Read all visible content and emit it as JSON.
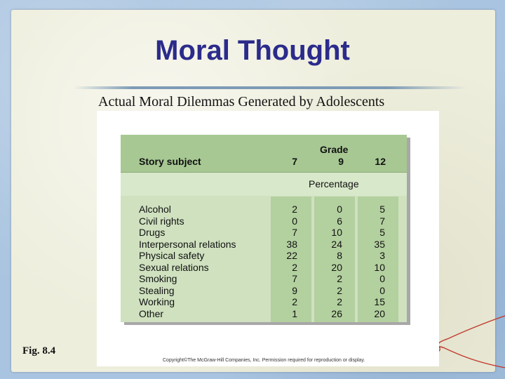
{
  "slide": {
    "title": "Moral Thought",
    "subtitle": "Actual Moral Dilemmas Generated by Adolescents",
    "figure_label": "Fig. 8.4"
  },
  "table": {
    "story_subject_header": "Story subject",
    "grade_header": "Grade",
    "percentage_label": "Percentage",
    "grades": [
      "7",
      "9",
      "12"
    ],
    "rows": [
      {
        "subject": "Alcohol",
        "values": [
          "2",
          "0",
          "5"
        ]
      },
      {
        "subject": "Civil rights",
        "values": [
          "0",
          "6",
          "7"
        ]
      },
      {
        "subject": "Drugs",
        "values": [
          "7",
          "10",
          "5"
        ]
      },
      {
        "subject": "Interpersonal relations",
        "values": [
          "38",
          "24",
          "35"
        ]
      },
      {
        "subject": "Physical safety",
        "values": [
          "22",
          "8",
          "3"
        ]
      },
      {
        "subject": "Sexual relations",
        "values": [
          "2",
          "20",
          "10"
        ]
      },
      {
        "subject": "Smoking",
        "values": [
          "7",
          "2",
          "0"
        ]
      },
      {
        "subject": "Stealing",
        "values": [
          "9",
          "2",
          "0"
        ]
      },
      {
        "subject": "Working",
        "values": [
          "2",
          "2",
          "15"
        ]
      },
      {
        "subject": "Other",
        "values": [
          "1",
          "26",
          "20"
        ]
      }
    ],
    "copyright": "Copyright©The McGraw-Hill Companies, Inc. Permission required for reproduction or display."
  },
  "colors": {
    "title": "#2b2b8c",
    "header_band": "#a7c893",
    "table_body": "#cfe1bf",
    "column_shade": "#b3d09f"
  }
}
